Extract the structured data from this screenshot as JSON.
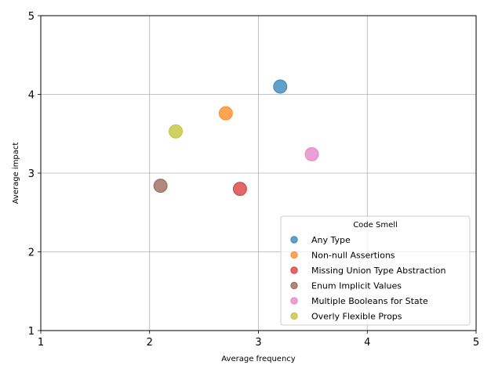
{
  "chart_data": {
    "type": "scatter",
    "title": "",
    "xlabel": "Average frequency",
    "ylabel": "Average impact",
    "xlim": [
      1,
      5
    ],
    "ylim": [
      1,
      5
    ],
    "xticks": [
      "1",
      "2",
      "3",
      "4",
      "5"
    ],
    "yticks": [
      "1",
      "2",
      "3",
      "4",
      "5"
    ],
    "grid": true,
    "legend": {
      "title": "Code Smell",
      "placement": "lower-right"
    },
    "series": [
      {
        "name": "Any Type",
        "color": "#1f77b4",
        "points": [
          {
            "x": 3.2,
            "y": 4.1
          }
        ]
      },
      {
        "name": "Non-null Assertions",
        "color": "#ff7f0e",
        "points": [
          {
            "x": 2.7,
            "y": 3.76
          }
        ]
      },
      {
        "name": "Missing Union Type Abstraction",
        "color": "#d62728",
        "points": [
          {
            "x": 2.83,
            "y": 2.8
          }
        ]
      },
      {
        "name": "Enum Implicit Values",
        "color": "#8c564b",
        "points": [
          {
            "x": 2.1,
            "y": 2.84
          }
        ]
      },
      {
        "name": "Multiple Booleans for State",
        "color": "#e377c2",
        "points": [
          {
            "x": 3.49,
            "y": 3.24
          }
        ]
      },
      {
        "name": "Overly Flexible Props",
        "color": "#bcbd22",
        "points": [
          {
            "x": 2.24,
            "y": 3.53
          }
        ]
      }
    ]
  }
}
